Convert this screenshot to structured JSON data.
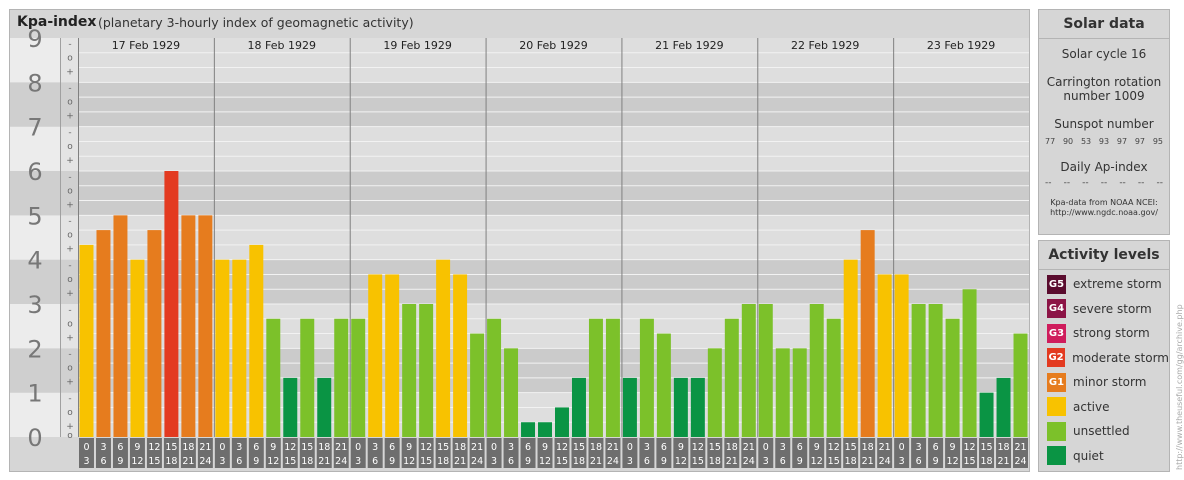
{
  "chart_data": {
    "type": "bar",
    "title": "Kpa-index",
    "subtitle": "(planetary 3-hourly index of geomagnetic activity)",
    "ylim": [
      0,
      9
    ],
    "y_ticks": [
      "0",
      "1",
      "2",
      "3",
      "4",
      "5",
      "6",
      "7",
      "8",
      "9"
    ],
    "minor_tick_labels": [
      "+",
      "o",
      "-"
    ],
    "days": [
      "17 Feb 1929",
      "18 Feb 1929",
      "19 Feb 1929",
      "20 Feb 1929",
      "21 Feb 1929",
      "22 Feb 1929",
      "23 Feb 1929"
    ],
    "interval_start": [
      "0",
      "3",
      "6",
      "9",
      "12",
      "15",
      "18",
      "21"
    ],
    "interval_end": [
      "3",
      "6",
      "9",
      "12",
      "15",
      "18",
      "21",
      "24"
    ],
    "values": [
      4.333,
      4.667,
      5.0,
      4.0,
      4.667,
      6.0,
      5.0,
      5.0,
      4.0,
      4.0,
      4.333,
      2.667,
      1.333,
      2.667,
      1.333,
      2.667,
      2.667,
      3.667,
      3.667,
      3.0,
      3.0,
      4.0,
      3.667,
      2.333,
      2.667,
      2.0,
      0.333,
      0.333,
      0.667,
      1.333,
      2.667,
      2.667,
      1.333,
      2.667,
      2.333,
      1.333,
      1.333,
      2.0,
      2.667,
      3.0,
      3.0,
      2.0,
      2.0,
      3.0,
      2.667,
      4.0,
      4.667,
      3.667,
      3.667,
      3.0,
      3.0,
      2.667,
      3.333,
      1.0,
      1.333,
      2.333
    ],
    "level_colors": {
      "quiet": "#0a9444",
      "unsettled": "#7cc12a",
      "active": "#f8c200",
      "G1": "#e67c1e",
      "G2": "#e33a20",
      "G3": "#cf1c5c",
      "G4": "#8c1446",
      "G5": "#5a0c2e"
    }
  },
  "solar": {
    "title": "Solar data",
    "cycle": "Solar cycle 16",
    "carrington_line1": "Carrington rotation",
    "carrington_line2": "number 1009",
    "sunspot_label": "Sunspot number",
    "sunspot_values": [
      "77",
      "90",
      "53",
      "93",
      "97",
      "97",
      "95"
    ],
    "ap_label": "Daily Ap-index",
    "ap_values": [
      "--",
      "--",
      "--",
      "--",
      "--",
      "--",
      "--"
    ],
    "source_line1": "Kpa-data from NOAA NCEI:",
    "source_line2": "http://www.ngdc.noaa.gov/"
  },
  "activity": {
    "title": "Activity levels",
    "items": [
      {
        "badge": "G5",
        "label": "extreme storm",
        "color": "#5a0c2e"
      },
      {
        "badge": "G4",
        "label": "severe storm",
        "color": "#8c1446"
      },
      {
        "badge": "G3",
        "label": "strong storm",
        "color": "#cf1c5c"
      },
      {
        "badge": "G2",
        "label": "moderate storm",
        "color": "#e33a20"
      },
      {
        "badge": "G1",
        "label": "minor storm",
        "color": "#e67c1e"
      },
      {
        "badge": "",
        "label": "active",
        "color": "#f8c200"
      },
      {
        "badge": "",
        "label": "unsettled",
        "color": "#7cc12a"
      },
      {
        "badge": "",
        "label": "quiet",
        "color": "#0a9444"
      }
    ]
  },
  "side_url": "http://www.theuseful.com/gg/archive.php"
}
